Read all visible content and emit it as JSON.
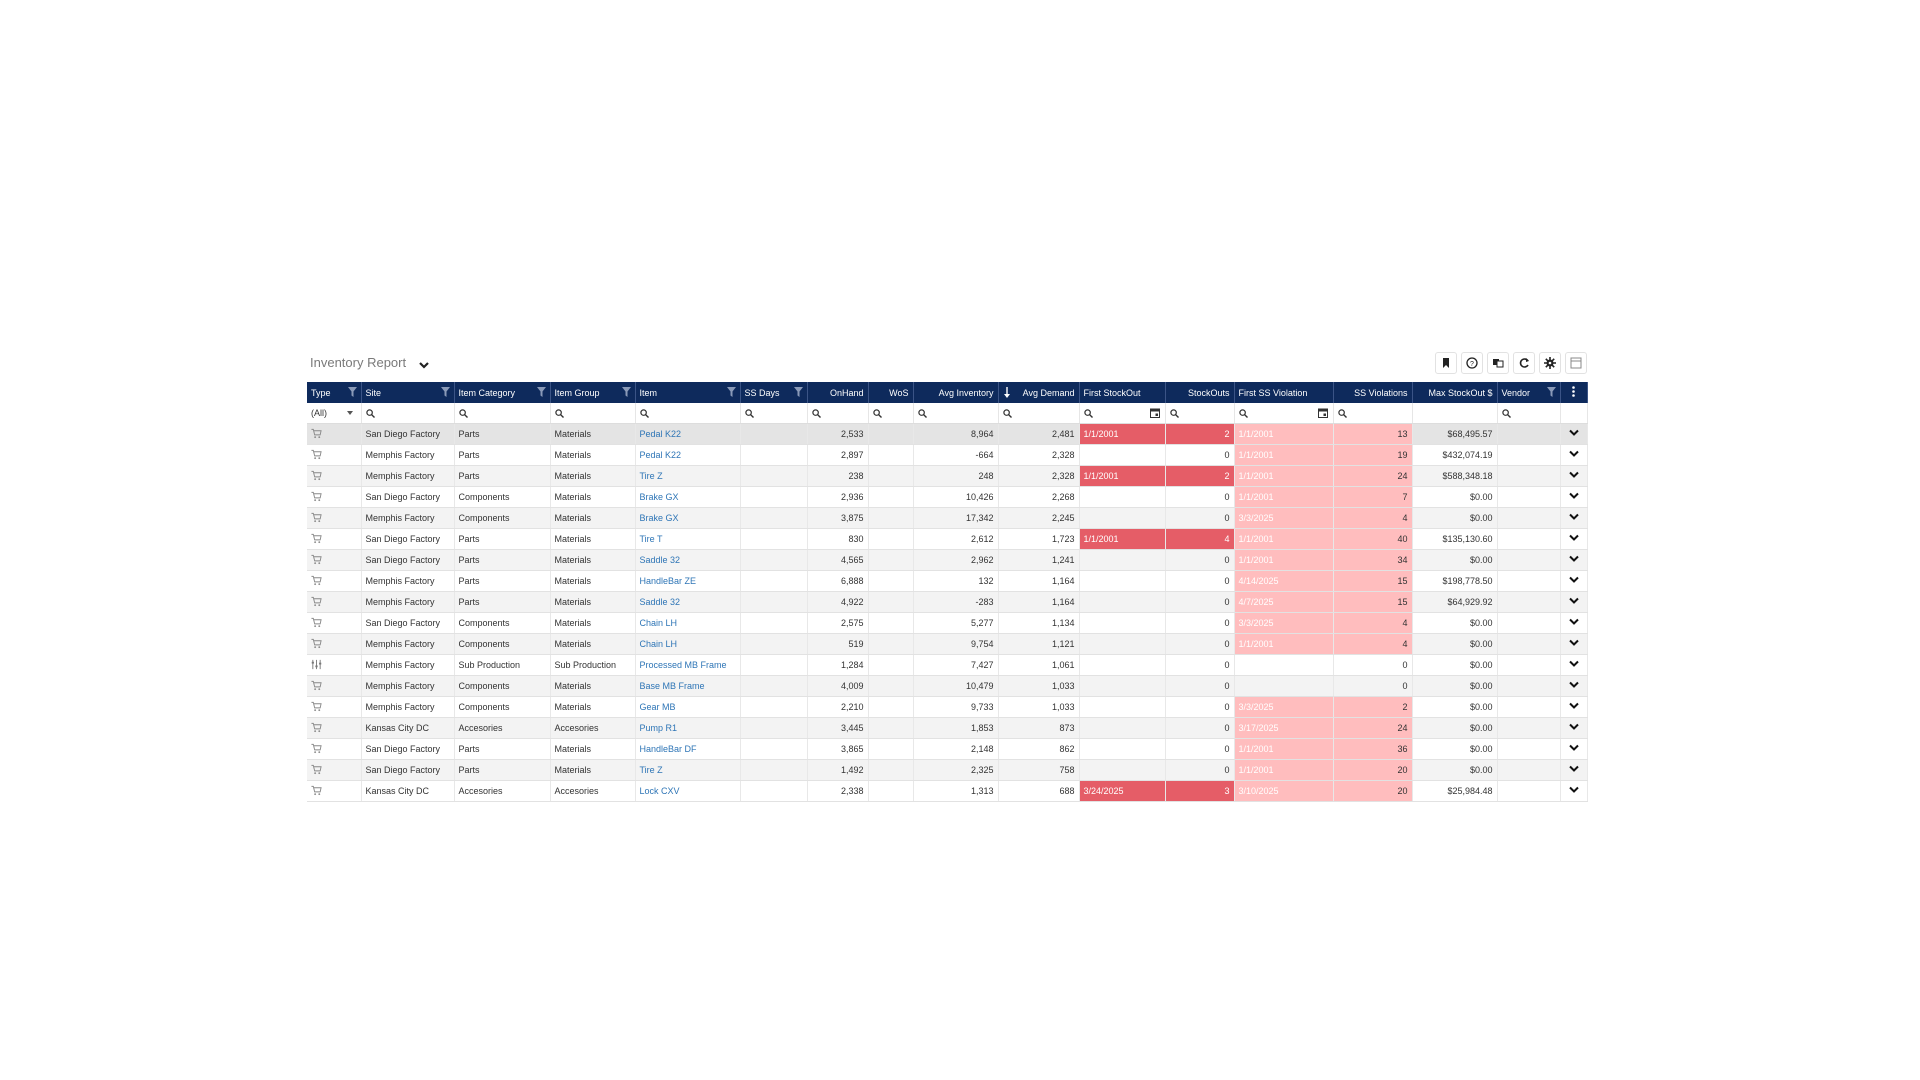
{
  "report": {
    "title": "Inventory Report",
    "toolbar": [
      {
        "name": "bookmark-icon",
        "label": "Bookmark"
      },
      {
        "name": "help-icon",
        "label": "Help"
      },
      {
        "name": "copy-icon",
        "label": "Copy"
      },
      {
        "name": "refresh-icon",
        "label": "Refresh"
      },
      {
        "name": "gear-icon",
        "label": "Settings"
      },
      {
        "name": "layout-icon",
        "label": "Layout"
      }
    ]
  },
  "colors": {
    "header_bg": "#0e2a5c",
    "stockout_red": "#e55d67",
    "ss_violation_pink": "#ffbdbe",
    "link_blue": "#2e75b6"
  },
  "columns": [
    {
      "key": "type",
      "label": "Type",
      "filter": "(All)"
    },
    {
      "key": "site",
      "label": "Site"
    },
    {
      "key": "item_category",
      "label": "Item Category"
    },
    {
      "key": "item_group",
      "label": "Item Group"
    },
    {
      "key": "item",
      "label": "Item"
    },
    {
      "key": "ss_days",
      "label": "SS Days"
    },
    {
      "key": "onhand",
      "label": "OnHand"
    },
    {
      "key": "wos",
      "label": "WoS"
    },
    {
      "key": "avg_inventory",
      "label": "Avg Inventory"
    },
    {
      "key": "avg_demand",
      "label": "Avg Demand",
      "sort": "desc"
    },
    {
      "key": "first_stockout",
      "label": "First StockOut"
    },
    {
      "key": "stockouts",
      "label": "StockOuts"
    },
    {
      "key": "first_ss_violation",
      "label": "First SS Violation"
    },
    {
      "key": "ss_violations",
      "label": "SS Violations"
    },
    {
      "key": "max_stockout",
      "label": "Max StockOut $"
    },
    {
      "key": "vendor",
      "label": "Vendor"
    }
  ],
  "rows": [
    {
      "type": "cart",
      "site": "San Diego Factory",
      "item_category": "Parts",
      "item_group": "Materials",
      "item": "Pedal K22",
      "ss_days": "",
      "onhand": "2,533",
      "wos": "",
      "avg_inventory": "8,964",
      "avg_demand": "2,481",
      "first_stockout": "1/1/2001",
      "stockouts": "2",
      "first_ss_violation": "1/1/2001",
      "ss_violations": "13",
      "max_stockout": "$68,495.57",
      "vendor": ""
    },
    {
      "type": "cart",
      "site": "Memphis Factory",
      "item_category": "Parts",
      "item_group": "Materials",
      "item": "Pedal K22",
      "ss_days": "",
      "onhand": "2,897",
      "wos": "",
      "avg_inventory": "-664",
      "avg_demand": "2,328",
      "first_stockout": "",
      "stockouts": "0",
      "first_ss_violation": "1/1/2001",
      "ss_violations": "19",
      "max_stockout": "$432,074.19",
      "vendor": ""
    },
    {
      "type": "cart",
      "site": "Memphis Factory",
      "item_category": "Parts",
      "item_group": "Materials",
      "item": "Tire Z",
      "ss_days": "",
      "onhand": "238",
      "wos": "",
      "avg_inventory": "248",
      "avg_demand": "2,328",
      "first_stockout": "1/1/2001",
      "stockouts": "2",
      "first_ss_violation": "1/1/2001",
      "ss_violations": "24",
      "max_stockout": "$588,348.18",
      "vendor": ""
    },
    {
      "type": "cart",
      "site": "San Diego Factory",
      "item_category": "Components",
      "item_group": "Materials",
      "item": "Brake GX",
      "ss_days": "",
      "onhand": "2,936",
      "wos": "",
      "avg_inventory": "10,426",
      "avg_demand": "2,268",
      "first_stockout": "",
      "stockouts": "0",
      "first_ss_violation": "1/1/2001",
      "ss_violations": "7",
      "max_stockout": "$0.00",
      "vendor": ""
    },
    {
      "type": "cart",
      "site": "Memphis Factory",
      "item_category": "Components",
      "item_group": "Materials",
      "item": "Brake GX",
      "ss_days": "",
      "onhand": "3,875",
      "wos": "",
      "avg_inventory": "17,342",
      "avg_demand": "2,245",
      "first_stockout": "",
      "stockouts": "0",
      "first_ss_violation": "3/3/2025",
      "ss_violations": "4",
      "max_stockout": "$0.00",
      "vendor": ""
    },
    {
      "type": "cart",
      "site": "San Diego Factory",
      "item_category": "Parts",
      "item_group": "Materials",
      "item": "Tire T",
      "ss_days": "",
      "onhand": "830",
      "wos": "",
      "avg_inventory": "2,612",
      "avg_demand": "1,723",
      "first_stockout": "1/1/2001",
      "stockouts": "4",
      "first_ss_violation": "1/1/2001",
      "ss_violations": "40",
      "max_stockout": "$135,130.60",
      "vendor": ""
    },
    {
      "type": "cart",
      "site": "San Diego Factory",
      "item_category": "Parts",
      "item_group": "Materials",
      "item": "Saddle 32",
      "ss_days": "",
      "onhand": "4,565",
      "wos": "",
      "avg_inventory": "2,962",
      "avg_demand": "1,241",
      "first_stockout": "",
      "stockouts": "0",
      "first_ss_violation": "1/1/2001",
      "ss_violations": "34",
      "max_stockout": "$0.00",
      "vendor": ""
    },
    {
      "type": "cart",
      "site": "Memphis Factory",
      "item_category": "Parts",
      "item_group": "Materials",
      "item": "HandleBar ZE",
      "ss_days": "",
      "onhand": "6,888",
      "wos": "",
      "avg_inventory": "132",
      "avg_demand": "1,164",
      "first_stockout": "",
      "stockouts": "0",
      "first_ss_violation": "4/14/2025",
      "ss_violations": "15",
      "max_stockout": "$198,778.50",
      "vendor": ""
    },
    {
      "type": "cart",
      "site": "Memphis Factory",
      "item_category": "Parts",
      "item_group": "Materials",
      "item": "Saddle 32",
      "ss_days": "",
      "onhand": "4,922",
      "wos": "",
      "avg_inventory": "-283",
      "avg_demand": "1,164",
      "first_stockout": "",
      "stockouts": "0",
      "first_ss_violation": "4/7/2025",
      "ss_violations": "15",
      "max_stockout": "$64,929.92",
      "vendor": ""
    },
    {
      "type": "cart",
      "site": "San Diego Factory",
      "item_category": "Components",
      "item_group": "Materials",
      "item": "Chain LH",
      "ss_days": "",
      "onhand": "2,575",
      "wos": "",
      "avg_inventory": "5,277",
      "avg_demand": "1,134",
      "first_stockout": "",
      "stockouts": "0",
      "first_ss_violation": "3/3/2025",
      "ss_violations": "4",
      "max_stockout": "$0.00",
      "vendor": ""
    },
    {
      "type": "cart",
      "site": "Memphis Factory",
      "item_category": "Components",
      "item_group": "Materials",
      "item": "Chain LH",
      "ss_days": "",
      "onhand": "519",
      "wos": "",
      "avg_inventory": "9,754",
      "avg_demand": "1,121",
      "first_stockout": "",
      "stockouts": "0",
      "first_ss_violation": "1/1/2001",
      "ss_violations": "4",
      "max_stockout": "$0.00",
      "vendor": ""
    },
    {
      "type": "production",
      "site": "Memphis Factory",
      "item_category": "Sub Production",
      "item_group": "Sub Production",
      "item": "Processed MB Frame",
      "ss_days": "",
      "onhand": "1,284",
      "wos": "",
      "avg_inventory": "7,427",
      "avg_demand": "1,061",
      "first_stockout": "",
      "stockouts": "0",
      "first_ss_violation": "",
      "ss_violations": "0",
      "max_stockout": "$0.00",
      "vendor": ""
    },
    {
      "type": "cart",
      "site": "Memphis Factory",
      "item_category": "Components",
      "item_group": "Materials",
      "item": "Base MB Frame",
      "ss_days": "",
      "onhand": "4,009",
      "wos": "",
      "avg_inventory": "10,479",
      "avg_demand": "1,033",
      "first_stockout": "",
      "stockouts": "0",
      "first_ss_violation": "",
      "ss_violations": "0",
      "max_stockout": "$0.00",
      "vendor": ""
    },
    {
      "type": "cart",
      "site": "Memphis Factory",
      "item_category": "Components",
      "item_group": "Materials",
      "item": "Gear MB",
      "ss_days": "",
      "onhand": "2,210",
      "wos": "",
      "avg_inventory": "9,733",
      "avg_demand": "1,033",
      "first_stockout": "",
      "stockouts": "0",
      "first_ss_violation": "3/3/2025",
      "ss_violations": "2",
      "max_stockout": "$0.00",
      "vendor": ""
    },
    {
      "type": "cart",
      "site": "Kansas City DC",
      "item_category": "Accesories",
      "item_group": "Accesories",
      "item": "Pump R1",
      "ss_days": "",
      "onhand": "3,445",
      "wos": "",
      "avg_inventory": "1,853",
      "avg_demand": "873",
      "first_stockout": "",
      "stockouts": "0",
      "first_ss_violation": "3/17/2025",
      "ss_violations": "24",
      "max_stockout": "$0.00",
      "vendor": ""
    },
    {
      "type": "cart",
      "site": "San Diego Factory",
      "item_category": "Parts",
      "item_group": "Materials",
      "item": "HandleBar DF",
      "ss_days": "",
      "onhand": "3,865",
      "wos": "",
      "avg_inventory": "2,148",
      "avg_demand": "862",
      "first_stockout": "",
      "stockouts": "0",
      "first_ss_violation": "1/1/2001",
      "ss_violations": "36",
      "max_stockout": "$0.00",
      "vendor": ""
    },
    {
      "type": "cart",
      "site": "San Diego Factory",
      "item_category": "Parts",
      "item_group": "Materials",
      "item": "Tire Z",
      "ss_days": "",
      "onhand": "1,492",
      "wos": "",
      "avg_inventory": "2,325",
      "avg_demand": "758",
      "first_stockout": "",
      "stockouts": "0",
      "first_ss_violation": "1/1/2001",
      "ss_violations": "20",
      "max_stockout": "$0.00",
      "vendor": ""
    },
    {
      "type": "cart",
      "site": "Kansas City DC",
      "item_category": "Accesories",
      "item_group": "Accesories",
      "item": "Lock CXV",
      "ss_days": "",
      "onhand": "2,338",
      "wos": "",
      "avg_inventory": "1,313",
      "avg_demand": "688",
      "first_stockout": "3/24/2025",
      "stockouts": "3",
      "first_ss_violation": "3/10/2025",
      "ss_violations": "20",
      "max_stockout": "$25,984.48",
      "vendor": ""
    }
  ]
}
